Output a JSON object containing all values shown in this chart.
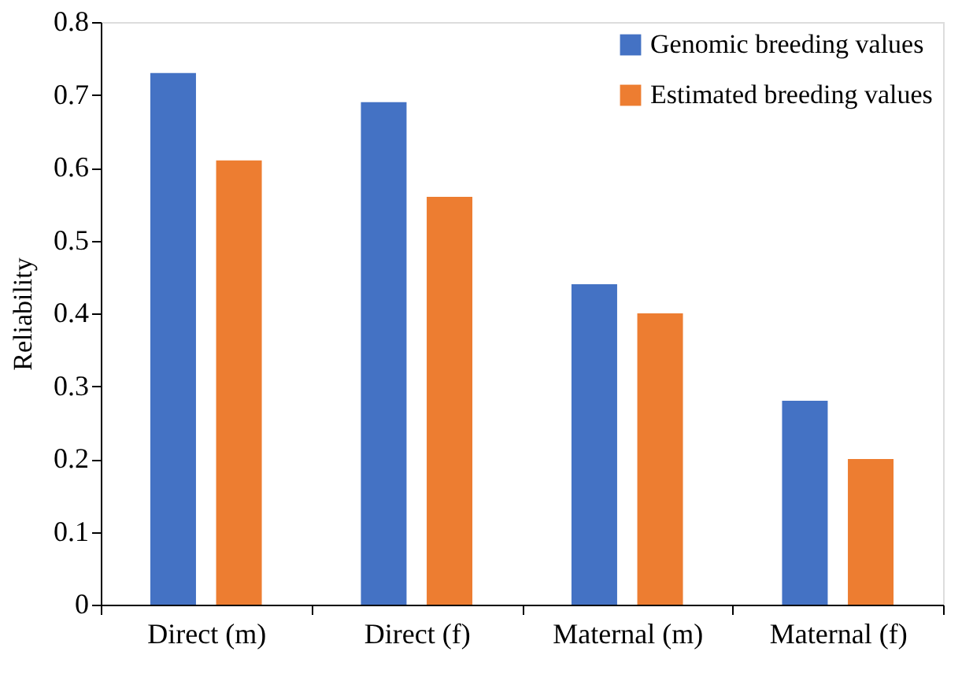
{
  "chart_data": {
    "type": "bar",
    "ylabel": "Reliability",
    "categories": [
      "Direct (m)",
      "Direct (f)",
      "Maternal (m)",
      "Maternal (f)"
    ],
    "series": [
      {
        "name": "Genomic breeding values",
        "color": "#4472c4",
        "values": [
          0.73,
          0.69,
          0.44,
          0.28
        ]
      },
      {
        "name": "Estimated breeding values",
        "color": "#ed7d31",
        "values": [
          0.61,
          0.56,
          0.4,
          0.2
        ]
      }
    ],
    "ylim": [
      0,
      0.8
    ],
    "yticks": [
      0,
      0.1,
      0.2,
      0.3,
      0.4,
      0.5,
      0.6,
      0.7,
      0.8
    ],
    "grid": false,
    "legend": "top right"
  }
}
